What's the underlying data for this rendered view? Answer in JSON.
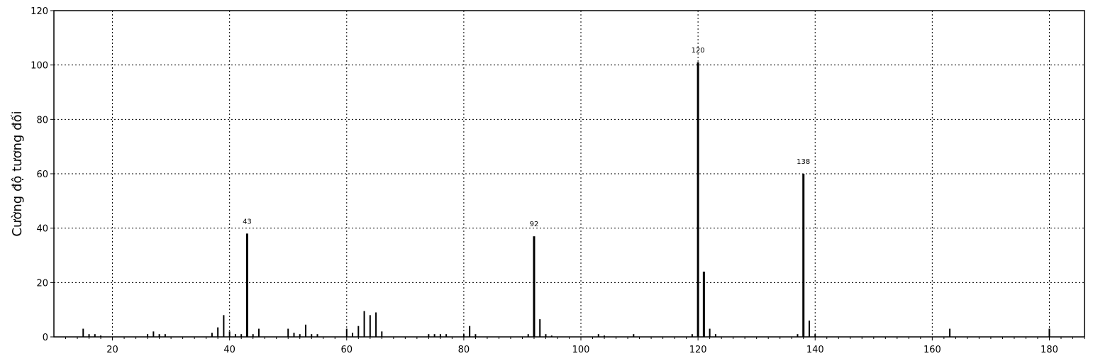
{
  "chart_data": {
    "type": "bar",
    "title": "",
    "xlabel": "",
    "ylabel": "Cường độ tương đối",
    "xlim": [
      10,
      186
    ],
    "ylim": [
      0,
      120
    ],
    "grid": true,
    "x_ticks": [
      20,
      40,
      60,
      80,
      100,
      120,
      140,
      160,
      180
    ],
    "y_ticks": [
      0,
      20,
      40,
      60,
      80,
      100,
      120
    ],
    "peaks": [
      {
        "x": 15,
        "y": 3
      },
      {
        "x": 16,
        "y": 1
      },
      {
        "x": 17,
        "y": 1
      },
      {
        "x": 18,
        "y": 0.5
      },
      {
        "x": 26,
        "y": 1
      },
      {
        "x": 27,
        "y": 2
      },
      {
        "x": 28,
        "y": 1
      },
      {
        "x": 29,
        "y": 1
      },
      {
        "x": 37,
        "y": 1.5
      },
      {
        "x": 38,
        "y": 3.5
      },
      {
        "x": 39,
        "y": 8
      },
      {
        "x": 40,
        "y": 2
      },
      {
        "x": 41,
        "y": 1
      },
      {
        "x": 42,
        "y": 1
      },
      {
        "x": 43,
        "y": 38
      },
      {
        "x": 44,
        "y": 1
      },
      {
        "x": 45,
        "y": 3
      },
      {
        "x": 50,
        "y": 3
      },
      {
        "x": 51,
        "y": 1.5
      },
      {
        "x": 52,
        "y": 1
      },
      {
        "x": 53,
        "y": 4.5
      },
      {
        "x": 54,
        "y": 1
      },
      {
        "x": 55,
        "y": 1
      },
      {
        "x": 60,
        "y": 3
      },
      {
        "x": 61,
        "y": 1.5
      },
      {
        "x": 62,
        "y": 4
      },
      {
        "x": 63,
        "y": 9.5
      },
      {
        "x": 64,
        "y": 8
      },
      {
        "x": 65,
        "y": 9
      },
      {
        "x": 66,
        "y": 2
      },
      {
        "x": 74,
        "y": 1
      },
      {
        "x": 75,
        "y": 1
      },
      {
        "x": 76,
        "y": 1
      },
      {
        "x": 77,
        "y": 1
      },
      {
        "x": 80,
        "y": 1
      },
      {
        "x": 81,
        "y": 4
      },
      {
        "x": 82,
        "y": 1
      },
      {
        "x": 91,
        "y": 1
      },
      {
        "x": 92,
        "y": 37
      },
      {
        "x": 93,
        "y": 6.5
      },
      {
        "x": 94,
        "y": 1
      },
      {
        "x": 95,
        "y": 0.5
      },
      {
        "x": 103,
        "y": 1
      },
      {
        "x": 104,
        "y": 0.5
      },
      {
        "x": 109,
        "y": 1
      },
      {
        "x": 119,
        "y": 1
      },
      {
        "x": 120,
        "y": 101
      },
      {
        "x": 121,
        "y": 24
      },
      {
        "x": 122,
        "y": 3
      },
      {
        "x": 123,
        "y": 1
      },
      {
        "x": 137,
        "y": 1
      },
      {
        "x": 138,
        "y": 60
      },
      {
        "x": 139,
        "y": 6
      },
      {
        "x": 140,
        "y": 1
      },
      {
        "x": 163,
        "y": 3
      },
      {
        "x": 180,
        "y": 3
      }
    ],
    "annotations": [
      {
        "x": 43,
        "y": 38,
        "text": "43"
      },
      {
        "x": 92,
        "y": 37,
        "text": "92"
      },
      {
        "x": 120,
        "y": 101,
        "text": "120"
      },
      {
        "x": 138,
        "y": 60,
        "text": "138"
      }
    ]
  }
}
